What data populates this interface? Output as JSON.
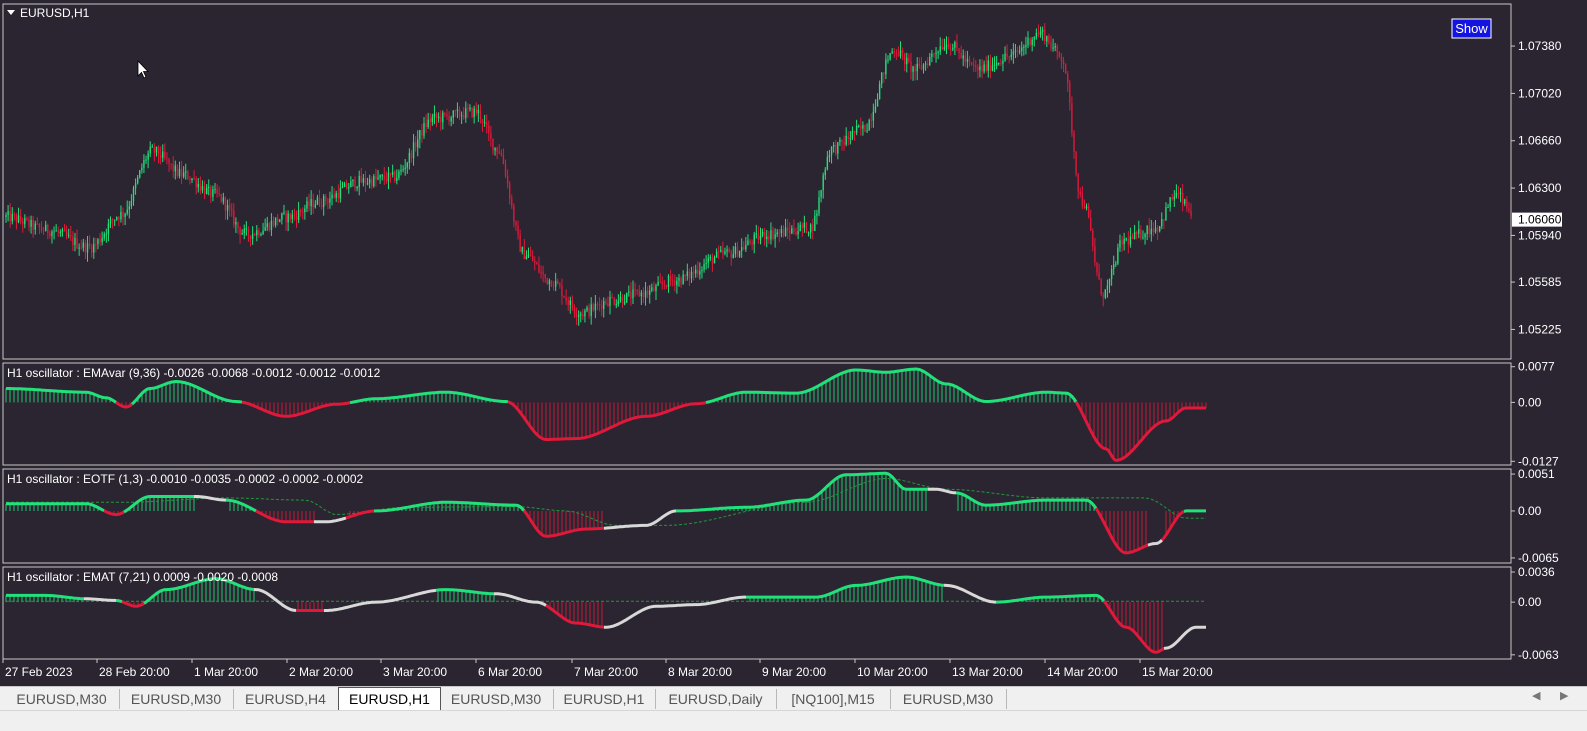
{
  "window": {
    "symbol_title": "EURUSD,H1",
    "show_button": "Show"
  },
  "colors": {
    "background": "#2a2530",
    "bull": "#22e07a",
    "bear": "#e0183a",
    "neutral": "#d8d8d8",
    "signal": "#1f9a3a",
    "axis_text": "#ffffff",
    "price_box": "#ffffff"
  },
  "chart_data": [
    {
      "type": "candlestick",
      "title": "EURUSD,H1",
      "ylim": [
        1.05,
        1.077
      ],
      "y_ticks": [
        "1.07380",
        "1.07020",
        "1.06660",
        "1.06300",
        "1.05940",
        "1.05585",
        "1.05225"
      ],
      "current_price": "1.06060",
      "closes_anchor": [
        [
          0,
          1.0608
        ],
        [
          20,
          1.0598
        ],
        [
          40,
          1.0585
        ],
        [
          55,
          1.061
        ],
        [
          70,
          1.0658
        ],
        [
          85,
          1.064
        ],
        [
          100,
          1.0625
        ],
        [
          115,
          1.0595
        ],
        [
          135,
          1.0608
        ],
        [
          150,
          1.062
        ],
        [
          170,
          1.0635
        ],
        [
          185,
          1.0638
        ],
        [
          205,
          1.0683
        ],
        [
          225,
          1.0688
        ],
        [
          235,
          1.066
        ],
        [
          248,
          1.058
        ],
        [
          260,
          1.056
        ],
        [
          275,
          1.0535
        ],
        [
          290,
          1.0545
        ],
        [
          305,
          1.055
        ],
        [
          320,
          1.056
        ],
        [
          345,
          1.058
        ],
        [
          365,
          1.0595
        ],
        [
          385,
          1.06
        ],
        [
          395,
          1.066
        ],
        [
          410,
          1.0675
        ],
        [
          425,
          1.0735
        ],
        [
          435,
          1.072
        ],
        [
          450,
          1.074
        ],
        [
          465,
          1.072
        ],
        [
          480,
          1.073
        ],
        [
          495,
          1.0748
        ],
        [
          505,
          1.073
        ],
        [
          515,
          1.062
        ],
        [
          525,
          1.055
        ],
        [
          535,
          1.059
        ],
        [
          550,
          1.06
        ],
        [
          560,
          1.0625
        ],
        [
          567,
          1.0612
        ]
      ],
      "x_labels": [
        "27 Feb 2023",
        "28 Feb 20:00",
        "1 Mar 20:00",
        "2 Mar 20:00",
        "3 Mar 20:00",
        "6 Mar 20:00",
        "7 Mar 20:00",
        "8 Mar 20:00",
        "9 Mar 20:00",
        "10 Mar 20:00",
        "13 Mar 20:00",
        "14 Mar 20:00",
        "15 Mar 20:00"
      ]
    },
    {
      "type": "histogram-line",
      "label": "H1  oscillator : EMAvar (9,36)  -0.0026 -0.0068 -0.0012 -0.0012 -0.0012",
      "ylim": [
        -0.0135,
        0.0085
      ],
      "y_ticks": [
        "0.0077",
        "0.00",
        "-0.0127"
      ],
      "anchor": [
        [
          0,
          0.003
        ],
        [
          40,
          0.0022
        ],
        [
          50,
          0.001
        ],
        [
          60,
          -0.001
        ],
        [
          72,
          0.003
        ],
        [
          85,
          0.0045
        ],
        [
          115,
          0.0002
        ],
        [
          140,
          -0.003
        ],
        [
          165,
          -0.0004
        ],
        [
          185,
          0.0008
        ],
        [
          220,
          0.0022
        ],
        [
          250,
          0.0002
        ],
        [
          270,
          -0.008
        ],
        [
          285,
          -0.0078
        ],
        [
          320,
          -0.003
        ],
        [
          345,
          -0.0003
        ],
        [
          370,
          0.0022
        ],
        [
          395,
          0.002
        ],
        [
          425,
          0.007
        ],
        [
          440,
          0.0065
        ],
        [
          455,
          0.0072
        ],
        [
          470,
          0.004
        ],
        [
          490,
          0.0002
        ],
        [
          520,
          0.0022
        ],
        [
          530,
          0.002
        ],
        [
          550,
          -0.01
        ],
        [
          555,
          -0.0125
        ],
        [
          580,
          -0.004
        ],
        [
          590,
          -0.0012
        ]
      ]
    },
    {
      "type": "histogram-line",
      "label": "H1  oscillator : EOTF (1,3)  -0.0010 -0.0035 -0.0002 -0.0002 -0.0002",
      "ylim": [
        -0.0072,
        0.0058
      ],
      "y_ticks": [
        "0.0051",
        "0.00",
        "-0.0065"
      ],
      "anchor": [
        [
          0,
          0.001
        ],
        [
          40,
          0.001
        ],
        [
          55,
          -0.0005
        ],
        [
          72,
          0.002
        ],
        [
          95,
          0.002
        ],
        [
          110,
          0.0015
        ],
        [
          140,
          -0.0015
        ],
        [
          160,
          -0.0015
        ],
        [
          185,
          0.0
        ],
        [
          220,
          0.0012
        ],
        [
          255,
          0.0008
        ],
        [
          270,
          -0.0035
        ],
        [
          290,
          -0.0025
        ],
        [
          320,
          -0.002
        ],
        [
          335,
          0.0
        ],
        [
          370,
          0.0005
        ],
        [
          400,
          0.0015
        ],
        [
          420,
          0.005
        ],
        [
          440,
          0.0052
        ],
        [
          450,
          0.003
        ],
        [
          465,
          0.003
        ],
        [
          475,
          0.0025
        ],
        [
          490,
          0.0008
        ],
        [
          520,
          0.0015
        ],
        [
          540,
          0.0015
        ],
        [
          560,
          -0.0058
        ],
        [
          575,
          -0.0045
        ],
        [
          590,
          0.0
        ]
      ],
      "signal_anchor": [
        [
          0,
          0.0012
        ],
        [
          60,
          0.0012
        ],
        [
          110,
          0.0018
        ],
        [
          150,
          0.0015
        ],
        [
          165,
          -0.0005
        ],
        [
          200,
          0.0005
        ],
        [
          255,
          0.0006
        ],
        [
          280,
          0.0
        ],
        [
          305,
          -0.002
        ],
        [
          330,
          -0.002
        ],
        [
          400,
          0.0012
        ],
        [
          440,
          0.0045
        ],
        [
          470,
          0.003
        ],
        [
          520,
          0.0018
        ],
        [
          570,
          0.0018
        ],
        [
          590,
          -0.001
        ]
      ],
      "neutral_ranges": [
        [
          95,
          110
        ],
        [
          155,
          170
        ],
        [
          300,
          335
        ],
        [
          462,
          475
        ],
        [
          572,
          578
        ]
      ]
    },
    {
      "type": "histogram-line",
      "label": "H1  oscillator :  EMAT  (7,21)  0.0009 -0.0020 -0.0008",
      "ylim": [
        -0.0068,
        0.0042
      ],
      "y_ticks": [
        "0.0036",
        "0.00",
        "-0.0063"
      ],
      "anchor": [
        [
          0,
          0.0008
        ],
        [
          20,
          0.0008
        ],
        [
          40,
          0.0004
        ],
        [
          55,
          0.0002
        ],
        [
          65,
          -0.0005
        ],
        [
          80,
          0.0015
        ],
        [
          105,
          0.0028
        ],
        [
          125,
          0.0015
        ],
        [
          145,
          -0.001
        ],
        [
          160,
          -0.001
        ],
        [
          185,
          0.0
        ],
        [
          220,
          0.0015
        ],
        [
          245,
          0.001
        ],
        [
          265,
          0.0
        ],
        [
          285,
          -0.0025
        ],
        [
          300,
          -0.003
        ],
        [
          325,
          -0.0005
        ],
        [
          345,
          -0.0003
        ],
        [
          370,
          0.0006
        ],
        [
          395,
          0.0006
        ],
        [
          405,
          0.0006
        ],
        [
          425,
          0.002
        ],
        [
          450,
          0.003
        ],
        [
          470,
          0.002
        ],
        [
          495,
          0.0
        ],
        [
          520,
          0.0006
        ],
        [
          545,
          0.0008
        ],
        [
          560,
          -0.003
        ],
        [
          575,
          -0.006
        ],
        [
          580,
          -0.0055
        ],
        [
          595,
          -0.003
        ]
      ],
      "signal_anchor": [
        [
          0,
          0.0001
        ],
        [
          600,
          0.0001
        ]
      ],
      "neutral_ranges": [
        [
          40,
          55
        ],
        [
          125,
          145
        ],
        [
          160,
          215
        ],
        [
          245,
          270
        ],
        [
          300,
          370
        ],
        [
          470,
          495
        ],
        [
          580,
          600
        ]
      ]
    }
  ],
  "tabs": [
    "EURUSD,M30",
    "EURUSD,M30",
    "EURUSD,H4",
    "EURUSD,H1",
    "EURUSD,M30",
    "EURUSD,H1",
    "EURUSD,Daily",
    "[NQ100],M15",
    "EURUSD,M30"
  ],
  "active_tab": 3
}
